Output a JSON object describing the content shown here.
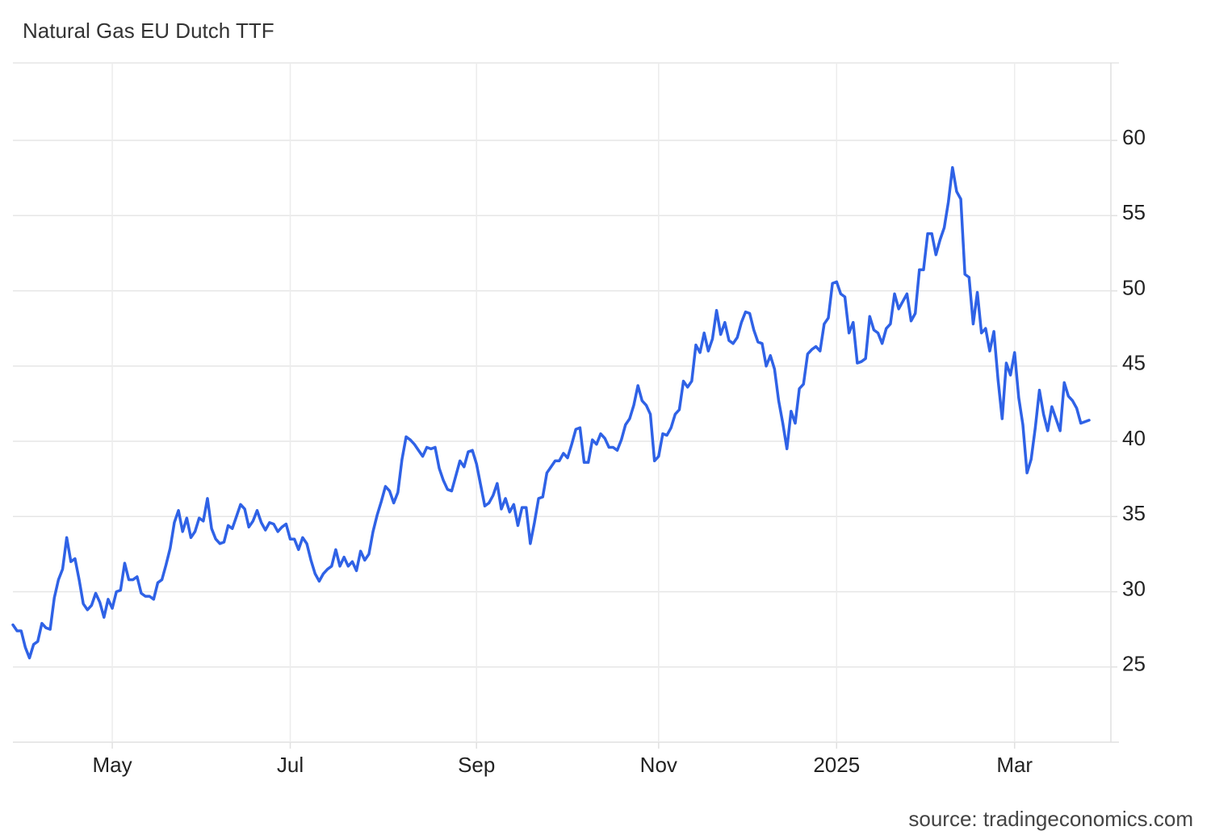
{
  "chart_data": {
    "type": "line",
    "title": "Natural Gas EU Dutch TTF",
    "source": "source: tradingeconomics.com",
    "categories": [
      null,
      null,
      null,
      null,
      null,
      null,
      null,
      null,
      null,
      null,
      null,
      null,
      null,
      null,
      null,
      null,
      null,
      null,
      null,
      null,
      null,
      null,
      null,
      null,
      "May",
      null,
      null,
      null,
      null,
      null,
      null,
      null,
      null,
      null,
      null,
      null,
      null,
      null,
      null,
      null,
      null,
      null,
      null,
      null,
      null,
      null,
      null,
      null,
      null,
      null,
      null,
      null,
      null,
      null,
      null,
      null,
      null,
      null,
      null,
      null,
      null,
      null,
      null,
      null,
      null,
      null,
      null,
      "Jul",
      null,
      null,
      null,
      null,
      null,
      null,
      null,
      null,
      null,
      null,
      null,
      null,
      null,
      null,
      null,
      null,
      null,
      null,
      null,
      null,
      null,
      null,
      null,
      null,
      null,
      null,
      null,
      null,
      null,
      null,
      null,
      null,
      null,
      null,
      null,
      null,
      null,
      null,
      null,
      null,
      null,
      null,
      null,
      null,
      "Sep",
      null,
      null,
      null,
      null,
      null,
      null,
      null,
      null,
      null,
      null,
      null,
      null,
      null,
      null,
      null,
      null,
      null,
      null,
      null,
      null,
      null,
      null,
      null,
      null,
      null,
      null,
      null,
      null,
      null,
      null,
      null,
      null,
      null,
      null,
      null,
      null,
      null,
      null,
      null,
      null,
      null,
      null,
      null,
      "Nov",
      null,
      null,
      null,
      null,
      null,
      null,
      null,
      null,
      null,
      null,
      null,
      null,
      null,
      null,
      null,
      null,
      null,
      null,
      null,
      null,
      null,
      null,
      null,
      null,
      null,
      null,
      null,
      null,
      null,
      null,
      null,
      null,
      null,
      null,
      null,
      null,
      null,
      null,
      null,
      null,
      null,
      null,
      "2025",
      null,
      null,
      null,
      null,
      null,
      null,
      null,
      null,
      null,
      null,
      null,
      null,
      null,
      null,
      null,
      null,
      null,
      null,
      null,
      null,
      null,
      null,
      null,
      null,
      null,
      null,
      null,
      null,
      null,
      null,
      null,
      null,
      null,
      null,
      null,
      null,
      null,
      null,
      null,
      null,
      null,
      null,
      "Mar",
      null,
      null,
      null,
      null,
      null,
      null,
      null,
      null,
      null,
      null,
      null,
      null,
      null,
      null,
      null,
      null,
      null,
      null
    ],
    "series": [
      {
        "name": "Natural Gas EU Dutch TTF",
        "color": "#2f62e6",
        "values": [
          27.8,
          27.4,
          27.4,
          26.3,
          25.6,
          26.5,
          26.7,
          27.9,
          27.6,
          27.5,
          29.6,
          30.8,
          31.5,
          33.6,
          32.0,
          32.2,
          30.8,
          29.2,
          28.8,
          29.1,
          29.9,
          29.3,
          28.3,
          29.5,
          28.9,
          30.0,
          30.1,
          31.9,
          30.8,
          30.8,
          31.0,
          29.9,
          29.7,
          29.7,
          29.5,
          30.6,
          30.8,
          31.8,
          32.9,
          34.6,
          35.4,
          34.0,
          34.9,
          33.6,
          34.0,
          34.9,
          34.7,
          36.2,
          34.2,
          33.5,
          33.2,
          33.3,
          34.4,
          34.2,
          35.0,
          35.8,
          35.5,
          34.3,
          34.7,
          35.4,
          34.6,
          34.1,
          34.6,
          34.5,
          34.0,
          34.3,
          34.5,
          33.5,
          33.5,
          32.8,
          33.6,
          33.2,
          32.1,
          31.2,
          30.7,
          31.2,
          31.5,
          31.7,
          32.8,
          31.7,
          32.3,
          31.7,
          32.0,
          31.4,
          32.7,
          32.1,
          32.5,
          34.0,
          35.1,
          36.0,
          37.0,
          36.7,
          35.9,
          36.6,
          38.8,
          40.3,
          40.1,
          39.8,
          39.4,
          39.0,
          39.6,
          39.5,
          39.6,
          38.2,
          37.4,
          36.8,
          36.7,
          37.7,
          38.7,
          38.3,
          39.3,
          39.4,
          38.5,
          37.1,
          35.7,
          35.9,
          36.4,
          37.2,
          35.5,
          36.2,
          35.3,
          35.8,
          34.4,
          35.6,
          35.6,
          33.2,
          34.6,
          36.2,
          36.3,
          37.9,
          38.3,
          38.7,
          38.7,
          39.2,
          38.9,
          39.8,
          40.8,
          40.9,
          38.6,
          38.6,
          40.1,
          39.8,
          40.5,
          40.2,
          39.6,
          39.6,
          39.4,
          40.1,
          41.1,
          41.5,
          42.4,
          43.7,
          42.7,
          42.4,
          41.8,
          38.7,
          39.0,
          40.5,
          40.4,
          40.9,
          41.8,
          42.1,
          44.0,
          43.6,
          44.0,
          46.4,
          45.9,
          47.2,
          46.0,
          46.8,
          48.7,
          47.1,
          47.9,
          46.7,
          46.5,
          46.9,
          47.9,
          48.6,
          48.5,
          47.4,
          46.6,
          46.5,
          45.0,
          45.7,
          44.8,
          42.7,
          41.2,
          39.5,
          42.0,
          41.2,
          43.5,
          43.8,
          45.8,
          46.1,
          46.3,
          46.0,
          47.8,
          48.2,
          50.5,
          50.6,
          49.8,
          49.6,
          47.2,
          47.9,
          45.2,
          45.3,
          45.5,
          48.3,
          47.4,
          47.2,
          46.5,
          47.5,
          47.8,
          49.8,
          48.8,
          49.3,
          49.8,
          48.0,
          48.5,
          51.4,
          51.4,
          53.8,
          53.8,
          52.4,
          53.4,
          54.2,
          55.9,
          58.2,
          56.6,
          56.1,
          51.1,
          50.9,
          47.8,
          49.9,
          47.2,
          47.5,
          46.0,
          47.3,
          44.1,
          41.5,
          45.2,
          44.4,
          45.9,
          42.9,
          41.1,
          37.9,
          38.8,
          40.9,
          43.4,
          41.8,
          40.7,
          42.3,
          41.5,
          40.7,
          43.9,
          43.0,
          42.7,
          42.2,
          41.2,
          41.3,
          41.4
        ]
      }
    ],
    "ylim": [
      20,
      65.15
    ],
    "yticks": [
      25,
      30,
      35,
      40,
      45,
      50,
      55,
      60
    ],
    "grid": true
  }
}
